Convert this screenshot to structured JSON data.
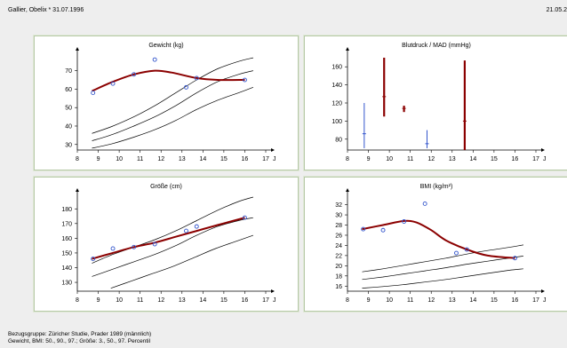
{
  "header": {
    "patient": "Gallier, Obelix * 31.07.1996",
    "date": "21.05.2"
  },
  "footer": {
    "line1": "Bezugsgruppe: Züricher Studie, Prader 1989 (männlich)",
    "line2": "Gewicht, BMI: 50., 90., 97.; Größe: 3., 50., 97. Percentil"
  },
  "colors": {
    "fit_curve": "#8b0000",
    "measurement": "#3355cc",
    "bp_bar": "#8b0000",
    "bp_line": "#3355cc",
    "percentile": "#000000"
  },
  "chart_data": [
    {
      "id": "weight",
      "type": "line",
      "title": "Gewicht (kg)",
      "xlim": [
        8,
        17
      ],
      "xticks": [
        8,
        9,
        10,
        11,
        12,
        13,
        14,
        15,
        16,
        17
      ],
      "x_unit": "J",
      "ylim": [
        27,
        78
      ],
      "yticks": [
        30,
        40,
        50,
        60,
        70
      ],
      "percentiles": [
        {
          "name": "50.",
          "x": [
            8.7,
            9.7,
            10.7,
            11.7,
            12.7,
            13.7,
            14.7,
            15.7,
            16.4
          ],
          "y": [
            28,
            30.5,
            34,
            38,
            43,
            49,
            54,
            58,
            61
          ]
        },
        {
          "name": "90.",
          "x": [
            8.7,
            9.7,
            10.7,
            11.7,
            12.7,
            13.7,
            14.7,
            15.7,
            16.4
          ],
          "y": [
            32,
            35.5,
            40,
            45,
            51,
            58,
            64,
            68,
            70
          ]
        },
        {
          "name": "97.",
          "x": [
            8.7,
            9.7,
            10.7,
            11.7,
            12.7,
            13.7,
            14.7,
            15.7,
            16.4
          ],
          "y": [
            36,
            40,
            45,
            51,
            58,
            65,
            71,
            75,
            77
          ]
        }
      ],
      "fit": {
        "x": [
          8.7,
          9.7,
          10.7,
          11.7,
          12.5,
          13.7,
          14.7,
          16.0
        ],
        "y": [
          59,
          64,
          68,
          70,
          69,
          66,
          65,
          65
        ]
      },
      "measurements": {
        "x": [
          8.75,
          9.7,
          10.7,
          11.7,
          13.2,
          13.7,
          16.0
        ],
        "y": [
          58,
          63,
          68,
          76,
          61,
          66,
          65
        ]
      }
    },
    {
      "id": "blood_pressure",
      "type": "bar",
      "title": "Blutdruck / MAD (mmHg)",
      "xlim": [
        8,
        17
      ],
      "xticks": [
        8,
        9,
        10,
        11,
        12,
        13,
        14,
        15,
        16,
        17
      ],
      "x_unit": "J",
      "ylim": [
        68,
        172
      ],
      "yticks": [
        80,
        100,
        120,
        140,
        160
      ],
      "ranges": [
        {
          "x": 8.8,
          "low": 70,
          "high": 120,
          "mad": 86,
          "color": "blue"
        },
        {
          "x": 9.75,
          "low": 105,
          "high": 170,
          "mad": 127,
          "color": "red"
        },
        {
          "x": 10.7,
          "low": 110,
          "high": 117,
          "mad": 114,
          "color": "red"
        },
        {
          "x": 11.8,
          "low": 70,
          "high": 90,
          "mad": 75,
          "color": "blue"
        },
        {
          "x": 13.6,
          "low": 68,
          "high": 167,
          "mad": 100,
          "color": "red"
        }
      ]
    },
    {
      "id": "height",
      "type": "line",
      "title": "Größe (cm)",
      "xlim": [
        8,
        17
      ],
      "xticks": [
        8,
        9,
        10,
        11,
        12,
        13,
        14,
        15,
        16,
        17
      ],
      "x_unit": "J",
      "ylim": [
        124,
        188
      ],
      "yticks": [
        130,
        140,
        150,
        160,
        170,
        180
      ],
      "percentiles": [
        {
          "name": "3.",
          "x": [
            9.6,
            10.6,
            11.6,
            12.6,
            13.6,
            14.6,
            15.6,
            16.4
          ],
          "y": [
            126,
            131,
            136,
            141,
            147,
            153,
            158,
            162
          ]
        },
        {
          "name": "50.",
          "x": [
            8.7,
            9.7,
            10.7,
            11.7,
            12.7,
            13.7,
            14.7,
            15.7,
            16.4
          ],
          "y": [
            134,
            139,
            144,
            149,
            155,
            162,
            168,
            172,
            174
          ]
        },
        {
          "name": "97.",
          "x": [
            8.7,
            9.7,
            10.7,
            11.7,
            12.7,
            13.7,
            14.7,
            15.7,
            16.4
          ],
          "y": [
            143,
            149,
            154,
            159,
            165,
            172,
            179,
            185,
            188
          ]
        }
      ],
      "fit": {
        "x": [
          8.7,
          9.7,
          10.7,
          11.7,
          12.7,
          13.7,
          14.7,
          16.0
        ],
        "y": [
          146,
          150,
          154,
          157,
          161,
          165,
          169,
          174
        ]
      },
      "measurements": {
        "x": [
          8.75,
          9.7,
          10.7,
          11.7,
          13.2,
          13.7,
          16.0
        ],
        "y": [
          146,
          153,
          154,
          156,
          165,
          168,
          174
        ]
      }
    },
    {
      "id": "bmi",
      "type": "line",
      "title": "BMI (kg/m²)",
      "xlim": [
        8,
        17
      ],
      "xticks": [
        8,
        9,
        10,
        11,
        12,
        13,
        14,
        15,
        16,
        17
      ],
      "x_unit": "J",
      "ylim": [
        15,
        33.5
      ],
      "yticks": [
        16,
        18,
        20,
        22,
        24,
        26,
        28,
        30,
        32
      ],
      "percentiles": [
        {
          "name": "50.",
          "x": [
            8.7,
            9.7,
            10.7,
            11.7,
            12.7,
            13.7,
            14.7,
            15.7,
            16.4
          ],
          "y": [
            15.6,
            15.9,
            16.3,
            16.8,
            17.3,
            17.9,
            18.5,
            19.1,
            19.4
          ]
        },
        {
          "name": "90.",
          "x": [
            8.7,
            9.7,
            10.7,
            11.7,
            12.7,
            13.7,
            14.7,
            15.7,
            16.4
          ],
          "y": [
            17.3,
            17.8,
            18.4,
            19.0,
            19.6,
            20.3,
            20.9,
            21.5,
            21.9
          ]
        },
        {
          "name": "97.",
          "x": [
            8.7,
            9.7,
            10.7,
            11.7,
            12.7,
            13.7,
            14.7,
            15.7,
            16.4
          ],
          "y": [
            18.8,
            19.4,
            20.1,
            20.8,
            21.5,
            22.3,
            23.0,
            23.6,
            24.1
          ]
        }
      ],
      "fit": {
        "x": [
          8.7,
          9.7,
          10.7,
          11.3,
          12.0,
          12.7,
          13.7,
          14.7,
          16.0
        ],
        "y": [
          27.2,
          28.0,
          28.8,
          28.5,
          27.0,
          25.0,
          23.2,
          22.0,
          21.5
        ]
      },
      "measurements": {
        "x": [
          8.75,
          9.7,
          10.7,
          11.7,
          13.2,
          13.7,
          16.0
        ],
        "y": [
          27.2,
          27.0,
          28.7,
          32.2,
          22.5,
          23.2,
          21.5
        ]
      }
    }
  ]
}
